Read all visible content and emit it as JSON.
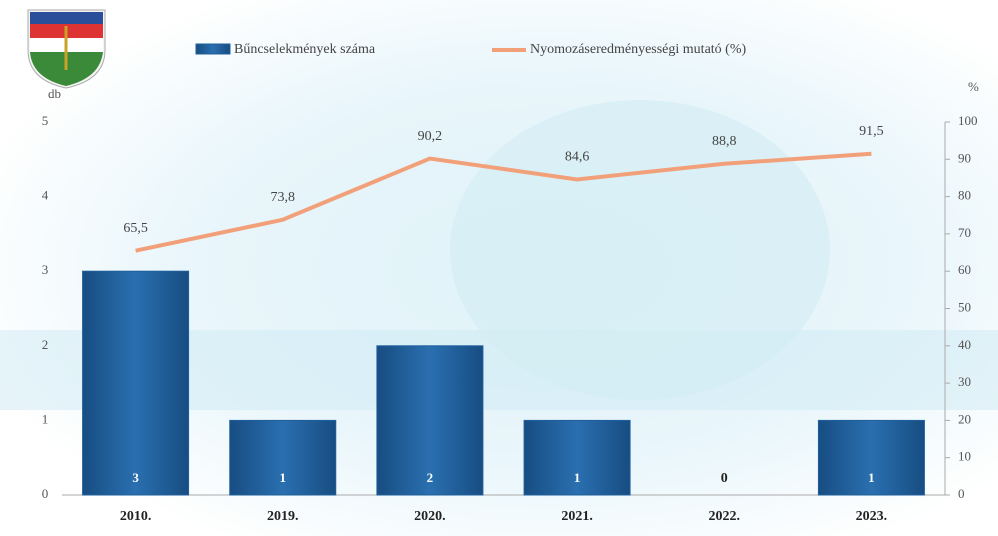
{
  "chart_data": {
    "type": "combo",
    "categories": [
      "2010.",
      "2019.",
      "2020.",
      "2021.",
      "2022.",
      "2023."
    ],
    "series": [
      {
        "name": "Bűncselekmények száma",
        "type": "bar",
        "color": "#1f5f9c",
        "values": [
          3,
          1,
          2,
          1,
          0,
          1
        ]
      },
      {
        "name": "Nyomozáseredményességi mutató (%)",
        "type": "line",
        "axis": "y2",
        "color": "#f2a07a",
        "values": [
          65.5,
          73.8,
          90.2,
          84.6,
          88.8,
          91.5
        ],
        "value_labels": [
          "65,5",
          "73,8",
          "90,2",
          "84,6",
          "88,8",
          "91,5"
        ]
      }
    ],
    "y_label": "db",
    "y2_label": "%",
    "ylim": [
      0,
      5
    ],
    "yticks": [
      0,
      1,
      2,
      3,
      4,
      5
    ],
    "y2lim": [
      0,
      100
    ],
    "y2ticks": [
      0,
      10,
      20,
      30,
      40,
      50,
      60,
      70,
      80,
      90,
      100
    ]
  }
}
